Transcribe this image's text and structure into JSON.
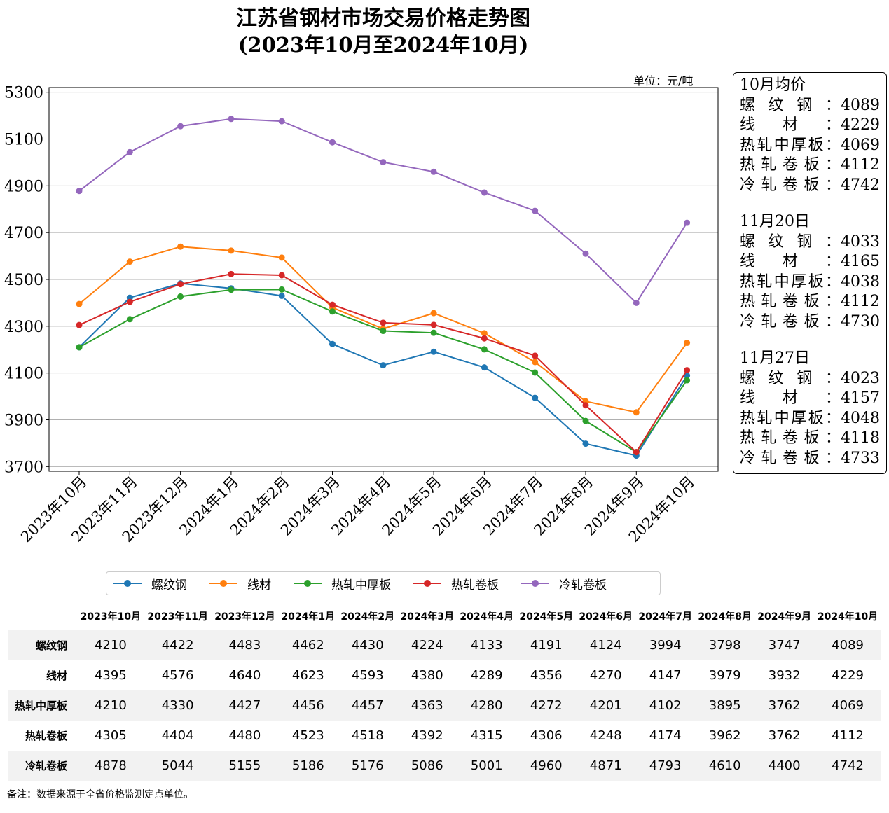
{
  "title_line1": "江苏省钢材市场交易价格走势图",
  "title_line2": "(2023年10月至2024年10月)",
  "unit_label": "单位：元/吨",
  "footnote": "备注：数据来源于全省价格监测定点单位。",
  "chart_data": {
    "type": "line",
    "categories": [
      "2023年10月",
      "2023年11月",
      "2023年12月",
      "2024年1月",
      "2024年2月",
      "2024年3月",
      "2024年4月",
      "2024年5月",
      "2024年6月",
      "2024年7月",
      "2024年8月",
      "2024年9月",
      "2024年10月"
    ],
    "ylim": [
      3680,
      5320
    ],
    "yticks": [
      3700,
      3900,
      4100,
      4300,
      4500,
      4700,
      4900,
      5100,
      5300
    ],
    "grid": "horizontal",
    "legend_position": "bottom",
    "series": [
      {
        "name": "螺纹钢",
        "color": "#1f77b4",
        "values": [
          4210,
          4422,
          4483,
          4462,
          4430,
          4224,
          4133,
          4191,
          4124,
          3994,
          3798,
          3747,
          4089
        ]
      },
      {
        "name": "线材",
        "color": "#ff7f0e",
        "values": [
          4395,
          4576,
          4640,
          4623,
          4593,
          4380,
          4289,
          4356,
          4270,
          4147,
          3979,
          3932,
          4229
        ]
      },
      {
        "name": "热轧中厚板",
        "color": "#2ca02c",
        "values": [
          4210,
          4330,
          4427,
          4456,
          4457,
          4363,
          4280,
          4272,
          4201,
          4102,
          3895,
          3762,
          4069
        ]
      },
      {
        "name": "热轧卷板",
        "color": "#d62728",
        "values": [
          4305,
          4404,
          4480,
          4523,
          4518,
          4392,
          4315,
          4306,
          4248,
          4174,
          3962,
          3762,
          4112
        ]
      },
      {
        "name": "冷轧卷板",
        "color": "#9467bd",
        "values": [
          4878,
          5044,
          5155,
          5186,
          5176,
          5086,
          5001,
          4960,
          4871,
          4793,
          4610,
          4400,
          4742
        ]
      }
    ]
  },
  "side_box": {
    "sections": [
      {
        "title": "10月均价",
        "rows": [
          {
            "name": "螺纹钢",
            "value": "4089"
          },
          {
            "name": "线材",
            "value": "4229"
          },
          {
            "name": "热轧中厚板",
            "value": "4069"
          },
          {
            "name": "热轧卷板",
            "value": "4112"
          },
          {
            "name": "冷轧卷板",
            "value": "4742"
          }
        ]
      },
      {
        "title": "11月20日",
        "rows": [
          {
            "name": "螺纹钢",
            "value": "4033"
          },
          {
            "name": "线材",
            "value": "4165"
          },
          {
            "name": "热轧中厚板",
            "value": "4038"
          },
          {
            "name": "热轧卷板",
            "value": "4112"
          },
          {
            "name": "冷轧卷板",
            "value": "4730"
          }
        ]
      },
      {
        "title": "11月27日",
        "rows": [
          {
            "name": "螺纹钢",
            "value": "4023"
          },
          {
            "name": "线材",
            "value": "4157"
          },
          {
            "name": "热轧中厚板",
            "value": "4048"
          },
          {
            "name": "热轧卷板",
            "value": "4118"
          },
          {
            "name": "冷轧卷板",
            "value": "4733"
          }
        ]
      }
    ]
  }
}
